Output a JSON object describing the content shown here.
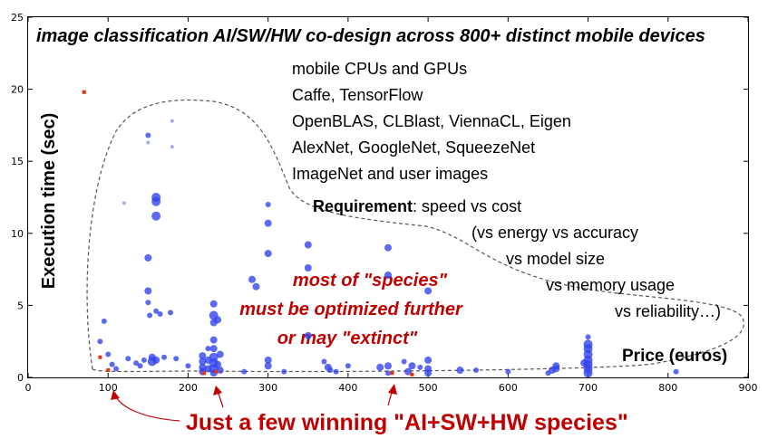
{
  "chart_data": {
    "type": "scatter",
    "title": "image classification AI/SW/HW co-design across 800+ distinct mobile devices",
    "xlabel": "Price (euros)",
    "ylabel": "Execution time (sec)",
    "xlim": [
      0,
      900
    ],
    "ylim": [
      0,
      25
    ],
    "xticks": [
      "0",
      "100",
      "200",
      "300",
      "400",
      "500",
      "600",
      "700",
      "800",
      "900"
    ],
    "yticks": [
      "0",
      "5",
      "10",
      "15",
      "20",
      "25"
    ],
    "grid": false,
    "series": [
      {
        "color": "#3344ee",
        "points": [
          [
            90,
            2.5,
            2
          ],
          [
            95,
            3.9,
            2
          ],
          [
            100,
            1.6,
            2
          ],
          [
            105,
            0.9,
            2
          ],
          [
            110,
            0.6,
            2
          ],
          [
            120,
            12.1,
            1
          ],
          [
            125,
            1.3,
            2
          ],
          [
            135,
            1.0,
            2
          ],
          [
            140,
            0.8,
            2
          ],
          [
            145,
            1.2,
            2
          ],
          [
            150,
            16.8,
            2
          ],
          [
            150,
            16.3,
            1
          ],
          [
            150,
            8.3,
            3
          ],
          [
            150,
            6.0,
            3
          ],
          [
            150,
            5.2,
            2
          ],
          [
            152,
            4.3,
            2
          ],
          [
            155,
            1.4,
            3
          ],
          [
            155,
            1.1,
            4
          ],
          [
            160,
            12.5,
            4
          ],
          [
            160,
            12.2,
            4
          ],
          [
            160,
            11.2,
            4
          ],
          [
            160,
            4.6,
            2
          ],
          [
            160,
            1.2,
            3
          ],
          [
            165,
            4.4,
            2
          ],
          [
            170,
            1.4,
            2
          ],
          [
            178,
            4.5,
            2
          ],
          [
            180,
            17.8,
            1
          ],
          [
            180,
            16.0,
            1
          ],
          [
            185,
            1.3,
            2
          ],
          [
            200,
            0.8,
            2
          ],
          [
            218,
            1.5,
            3
          ],
          [
            218,
            1.1,
            3
          ],
          [
            218,
            0.7,
            3
          ],
          [
            218,
            0.4,
            3
          ],
          [
            225,
            2.0,
            2
          ],
          [
            225,
            1.2,
            3
          ],
          [
            225,
            0.6,
            3
          ],
          [
            232,
            5.1,
            3
          ],
          [
            232,
            4.3,
            4
          ],
          [
            232,
            3.8,
            3
          ],
          [
            232,
            2.6,
            3
          ],
          [
            232,
            2.0,
            3
          ],
          [
            232,
            1.4,
            4
          ],
          [
            232,
            1.0,
            4
          ],
          [
            232,
            0.6,
            4
          ],
          [
            232,
            0.3,
            3
          ],
          [
            237,
            4.0,
            3
          ],
          [
            237,
            0.9,
            3
          ],
          [
            240,
            1.6,
            3
          ],
          [
            240,
            0.5,
            3
          ],
          [
            270,
            0.4,
            2
          ],
          [
            280,
            6.8,
            3
          ],
          [
            285,
            6.3,
            3
          ],
          [
            300,
            12.0,
            2
          ],
          [
            300,
            10.7,
            3
          ],
          [
            300,
            8.6,
            3
          ],
          [
            300,
            1.2,
            3
          ],
          [
            300,
            0.8,
            3
          ],
          [
            320,
            0.4,
            2
          ],
          [
            350,
            9.2,
            3
          ],
          [
            350,
            7.6,
            3
          ],
          [
            350,
            2.9,
            3
          ],
          [
            370,
            1.1,
            2
          ],
          [
            375,
            0.7,
            3
          ],
          [
            378,
            0.5,
            2
          ],
          [
            385,
            0.4,
            2
          ],
          [
            400,
            0.8,
            2
          ],
          [
            440,
            0.7,
            3
          ],
          [
            450,
            9.0,
            3
          ],
          [
            450,
            7.1,
            3
          ],
          [
            450,
            0.8,
            3
          ],
          [
            450,
            0.3,
            2
          ],
          [
            470,
            1.1,
            2
          ],
          [
            475,
            0.4,
            3
          ],
          [
            480,
            0.8,
            3
          ],
          [
            490,
            0.7,
            2
          ],
          [
            500,
            6.0,
            3
          ],
          [
            500,
            1.2,
            3
          ],
          [
            500,
            0.6,
            3
          ],
          [
            500,
            0.3,
            3
          ],
          [
            540,
            0.5,
            3
          ],
          [
            560,
            0.5,
            2
          ],
          [
            600,
            0.4,
            2
          ],
          [
            650,
            0.3,
            2
          ],
          [
            655,
            0.5,
            3
          ],
          [
            660,
            0.8,
            3
          ],
          [
            660,
            0.6,
            3
          ],
          [
            700,
            2.8,
            2
          ],
          [
            700,
            2.3,
            4
          ],
          [
            700,
            2.0,
            4
          ],
          [
            700,
            1.6,
            4
          ],
          [
            700,
            1.2,
            4
          ],
          [
            700,
            0.9,
            4
          ],
          [
            700,
            0.6,
            4
          ],
          [
            700,
            0.3,
            4
          ],
          [
            695,
            1.0,
            3
          ],
          [
            810,
            0.4,
            2
          ]
        ]
      },
      {
        "color": "#dd3311",
        "points": [
          [
            70,
            19.8,
            2
          ],
          [
            90,
            1.4,
            2
          ],
          [
            100,
            0.5,
            2
          ],
          [
            220,
            0.3,
            2
          ],
          [
            235,
            0.4,
            2
          ],
          [
            455,
            0.3,
            2
          ],
          [
            480,
            0.2,
            2
          ]
        ]
      }
    ],
    "annotations": {
      "tech_list": [
        "mobile CPUs and GPUs",
        "Caffe, TensorFlow",
        "OpenBLAS, CLBlast, ViennaCL, Eigen",
        "AlexNet, GoogleNet, SqueezeNet",
        "ImageNet and user images"
      ],
      "req_bold": "Requirement",
      "req_rest": ": speed vs cost",
      "req_lines": [
        "(vs energy vs accuracy",
        "vs model size",
        "vs memory usage",
        "vs reliability…)"
      ],
      "red_lines": [
        "most of \"species\"",
        "must be optimized further",
        "or may \"extinct\""
      ],
      "bottom": "Just a few winning \"AI+SW+HW species\""
    },
    "colors": {
      "point_blue": "#3344ee",
      "point_red": "#dd3311",
      "annotation_red": "#c00000",
      "outline": "#555555"
    }
  }
}
